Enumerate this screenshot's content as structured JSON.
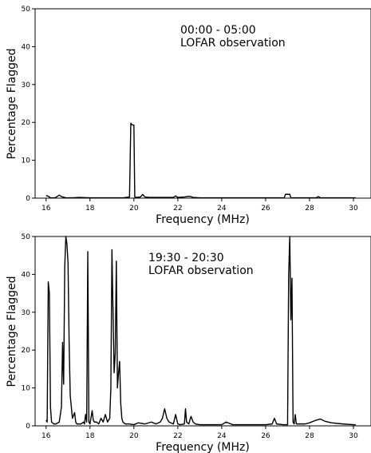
{
  "chart_data": [
    {
      "type": "line",
      "xlabel": "Frequency (MHz)",
      "ylabel": "Percentage Flagged",
      "xlim": [
        15.5,
        30.8
      ],
      "ylim": [
        0,
        50
      ],
      "xticks": [
        16,
        18,
        20,
        22,
        24,
        26,
        28,
        30
      ],
      "yticks": [
        0,
        10,
        20,
        30,
        40,
        50
      ],
      "annotation": [
        "00:00 - 05:00",
        "LOFAR observation"
      ],
      "series": [
        {
          "x": [
            16.0,
            16.1,
            16.2,
            16.4,
            16.5,
            16.6,
            16.7,
            16.9,
            17.2,
            17.5,
            18.0,
            18.5,
            19.0,
            19.5,
            19.8,
            19.86,
            19.9,
            19.95,
            20.0,
            20.04,
            20.1,
            20.3,
            20.4,
            20.5,
            20.7,
            21.0,
            21.5,
            21.8,
            21.9,
            22.0,
            22.3,
            22.5,
            22.6,
            22.7,
            23.0,
            23.5,
            24.0,
            24.5,
            25.0,
            25.5,
            26.0,
            26.5,
            26.85,
            26.9,
            27.1,
            27.15,
            27.5,
            28.0,
            28.3,
            28.4,
            28.5,
            29.0,
            29.5,
            30.1
          ],
          "y": [
            0.7,
            0.5,
            0.1,
            0.1,
            0.4,
            0.8,
            0.4,
            0.1,
            0.1,
            0.2,
            0.1,
            0.1,
            0.1,
            0.1,
            0.3,
            19.8,
            19.5,
            19.3,
            19.3,
            0.3,
            0.2,
            0.3,
            1.0,
            0.3,
            0.2,
            0.2,
            0.2,
            0.2,
            0.6,
            0.2,
            0.3,
            0.5,
            0.4,
            0.2,
            0.1,
            0.1,
            0.1,
            0.1,
            0.1,
            0.1,
            0.1,
            0.1,
            0.1,
            1.0,
            1.0,
            0.1,
            0.1,
            0.1,
            0.1,
            0.4,
            0.1,
            0.1,
            0.1,
            0.1
          ]
        }
      ]
    },
    {
      "type": "line",
      "xlabel": "Frequency (MHz)",
      "ylabel": "Percentage Flagged",
      "xlim": [
        15.5,
        30.8
      ],
      "ylim": [
        0,
        50
      ],
      "xticks": [
        16,
        18,
        20,
        22,
        24,
        26,
        28,
        30
      ],
      "yticks": [
        0,
        10,
        20,
        30,
        40,
        50
      ],
      "annotation": [
        "19:30 - 20:30",
        "LOFAR observation"
      ],
      "series": [
        {
          "x": [
            16.0,
            16.05,
            16.1,
            16.15,
            16.2,
            16.25,
            16.35,
            16.45,
            16.6,
            16.7,
            16.75,
            16.8,
            16.85,
            16.9,
            16.95,
            17.0,
            17.05,
            17.1,
            17.2,
            17.3,
            17.35,
            17.4,
            17.5,
            17.6,
            17.7,
            17.75,
            17.8,
            17.85,
            17.9,
            17.95,
            18.0,
            18.1,
            18.15,
            18.2,
            18.3,
            18.4,
            18.5,
            18.6,
            18.7,
            18.8,
            18.9,
            18.95,
            19.0,
            19.05,
            19.1,
            19.15,
            19.2,
            19.25,
            19.3,
            19.35,
            19.4,
            19.45,
            19.5,
            19.6,
            19.7,
            19.8,
            20.0,
            20.2,
            20.5,
            20.8,
            21.0,
            21.2,
            21.3,
            21.4,
            21.5,
            21.6,
            21.8,
            21.9,
            22.0,
            22.1,
            22.3,
            22.35,
            22.4,
            22.5,
            22.6,
            22.7,
            22.8,
            23.0,
            23.5,
            24.0,
            24.2,
            24.5,
            25.0,
            25.5,
            26.0,
            26.3,
            26.4,
            26.5,
            26.8,
            27.0,
            27.05,
            27.1,
            27.15,
            27.2,
            27.25,
            27.3,
            27.35,
            27.4,
            27.5,
            27.8,
            28.0,
            28.3,
            28.5,
            28.7,
            29.0,
            29.5,
            30.0,
            30.1
          ],
          "y": [
            1.5,
            1.0,
            38.0,
            35.0,
            5.0,
            1.0,
            0.5,
            0.5,
            1.0,
            5.0,
            22.0,
            11.0,
            42.0,
            50.0,
            48.0,
            43.0,
            22.0,
            8.0,
            2.0,
            3.5,
            1.0,
            0.5,
            0.5,
            0.5,
            1.0,
            0.5,
            3.0,
            1.0,
            46.0,
            1.0,
            0.5,
            4.0,
            1.5,
            1.0,
            1.0,
            0.5,
            2.0,
            1.0,
            3.0,
            1.0,
            2.0,
            10.0,
            46.5,
            30.0,
            14.0,
            19.0,
            43.5,
            10.0,
            14.0,
            17.0,
            6.0,
            2.0,
            1.0,
            0.5,
            0.5,
            0.5,
            0.3,
            0.8,
            0.5,
            1.0,
            0.5,
            1.0,
            2.0,
            4.5,
            2.0,
            1.0,
            0.5,
            3.0,
            0.5,
            0.3,
            0.5,
            4.5,
            1.0,
            0.5,
            2.5,
            1.0,
            0.5,
            0.3,
            0.3,
            0.3,
            1.0,
            0.3,
            0.3,
            0.3,
            0.3,
            0.5,
            2.0,
            0.5,
            0.3,
            0.3,
            40.0,
            50.0,
            28.0,
            39.0,
            1.0,
            0.5,
            3.0,
            0.5,
            0.5,
            0.5,
            0.8,
            1.5,
            1.8,
            1.2,
            0.8,
            0.5,
            0.3,
            0.3
          ]
        }
      ]
    }
  ]
}
